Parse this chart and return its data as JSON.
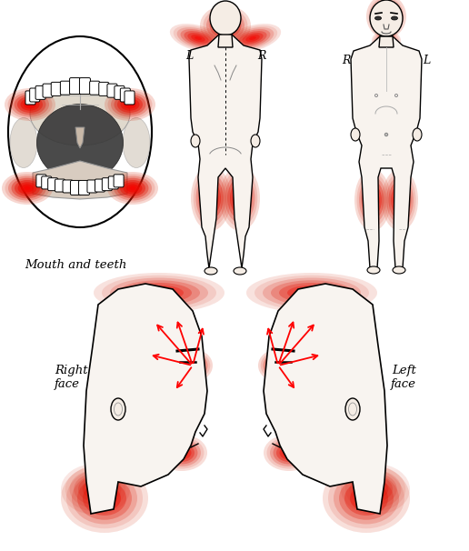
{
  "background_color": "#ffffff",
  "figsize": [
    5.16,
    6.06
  ],
  "dpi": 100,
  "pain_color_dark": "#c41200",
  "pain_color_mid": "#d94030",
  "pain_color_light": "#e87060",
  "pain_color_glow": "#f0a090",
  "labels": {
    "mouth": "Mouth and teeth",
    "right_face": "Right\nface",
    "left_face": "Left\nface"
  }
}
